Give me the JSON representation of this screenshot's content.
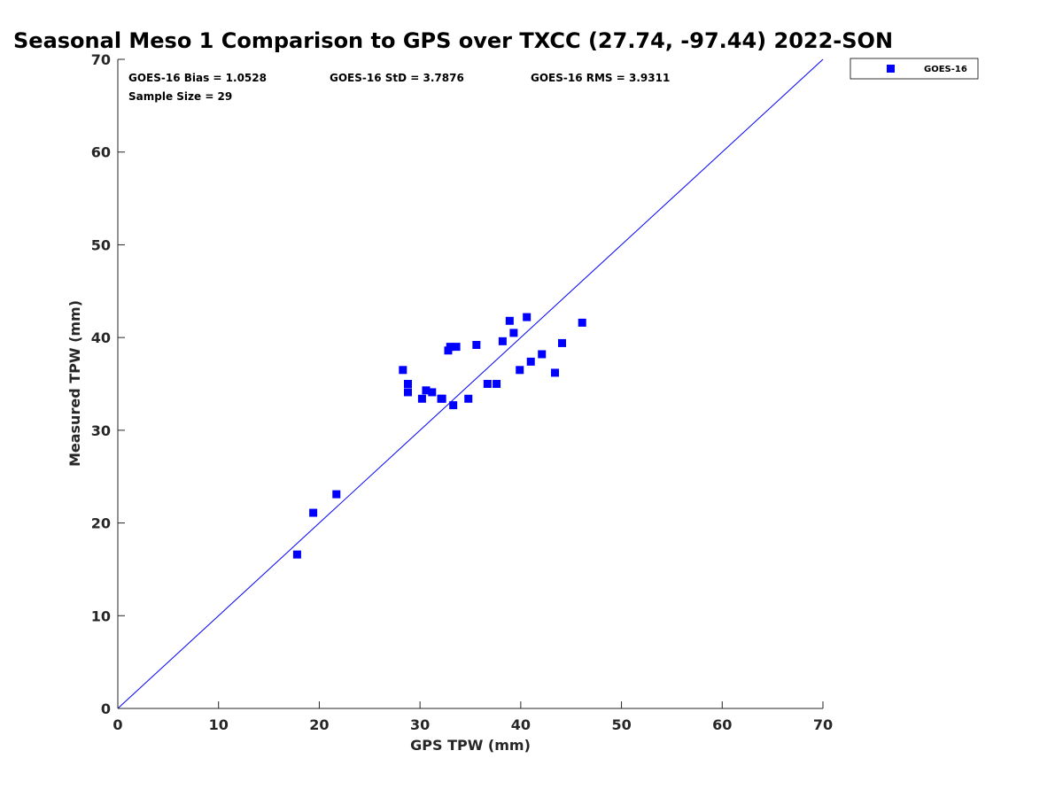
{
  "chart_data": {
    "type": "scatter",
    "title": "Seasonal Meso 1 Comparison to GPS over TXCC (27.74, -97.44) 2022-SON",
    "xlabel": "GPS TPW (mm)",
    "ylabel": "Measured TPW (mm)",
    "xlim": [
      0,
      70
    ],
    "ylim": [
      0,
      70
    ],
    "xticks": [
      0,
      10,
      20,
      30,
      40,
      50,
      60,
      70
    ],
    "yticks": [
      0,
      10,
      20,
      30,
      40,
      50,
      60,
      70
    ],
    "grid": false,
    "legend_position": "outside-top-right",
    "reference_line": {
      "from": [
        0,
        0
      ],
      "to": [
        70,
        70
      ],
      "color": "#0000ff"
    },
    "stats": {
      "bias": "GOES-16 Bias = 1.0528",
      "std": "GOES-16 StD = 3.7876",
      "rms": "GOES-16 RMS = 3.9311",
      "sample_size": "Sample Size = 29"
    },
    "series": [
      {
        "name": "GOES-16",
        "color": "#0000ff",
        "marker": "square",
        "points": [
          [
            17.8,
            16.6
          ],
          [
            19.4,
            21.1
          ],
          [
            21.7,
            23.1
          ],
          [
            28.3,
            36.5
          ],
          [
            28.8,
            35.0
          ],
          [
            28.8,
            34.1
          ],
          [
            30.2,
            33.4
          ],
          [
            30.6,
            34.3
          ],
          [
            31.2,
            34.1
          ],
          [
            32.1,
            33.4
          ],
          [
            32.2,
            33.4
          ],
          [
            32.8,
            38.6
          ],
          [
            33.0,
            39.0
          ],
          [
            33.3,
            32.7
          ],
          [
            33.6,
            39.0
          ],
          [
            34.8,
            33.4
          ],
          [
            35.6,
            39.2
          ],
          [
            36.7,
            35.0
          ],
          [
            37.6,
            35.0
          ],
          [
            38.2,
            39.6
          ],
          [
            38.9,
            41.8
          ],
          [
            39.3,
            40.5
          ],
          [
            39.9,
            36.5
          ],
          [
            40.6,
            42.2
          ],
          [
            41.0,
            37.4
          ],
          [
            42.1,
            38.2
          ],
          [
            43.4,
            36.2
          ],
          [
            44.1,
            39.4
          ],
          [
            46.1,
            41.6
          ]
        ]
      }
    ]
  }
}
